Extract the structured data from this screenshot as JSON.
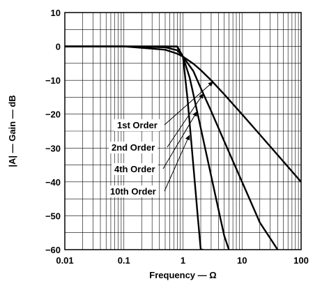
{
  "chart_data": {
    "type": "line",
    "title": "",
    "xlabel": "Frequency — Ω",
    "ylabel": "|A| — Gain — dB",
    "xscale": "log",
    "xlim": [
      0.01,
      100
    ],
    "ylim": [
      -60,
      10
    ],
    "grid": true,
    "x_ticks": [
      {
        "value": 0.01,
        "label": "0.01"
      },
      {
        "value": 0.1,
        "label": "0.1"
      },
      {
        "value": 1,
        "label": "1"
      },
      {
        "value": 10,
        "label": "10"
      },
      {
        "value": 100,
        "label": "100"
      }
    ],
    "y_ticks": [
      {
        "value": 10,
        "label": "10"
      },
      {
        "value": 0,
        "label": "0"
      },
      {
        "value": -10,
        "label": "−10"
      },
      {
        "value": -20,
        "label": "−20"
      },
      {
        "value": -30,
        "label": "−30"
      },
      {
        "value": -40,
        "label": "−40"
      },
      {
        "value": -50,
        "label": "−50"
      },
      {
        "value": -60,
        "label": "−60"
      }
    ],
    "series": [
      {
        "order": 1,
        "x": [
          0.01,
          0.1,
          0.5,
          0.8,
          1,
          1.5,
          2,
          3,
          5,
          10,
          20,
          50,
          100
        ],
        "y": [
          0,
          0,
          -0.97,
          -2.15,
          -3.01,
          -5.12,
          -6.99,
          -10.0,
          -14.15,
          -20.04,
          -26.03,
          -33.98,
          -40.0
        ]
      },
      {
        "order": 2,
        "x": [
          0.01,
          0.1,
          0.5,
          0.8,
          1,
          1.5,
          2,
          3,
          5,
          10,
          20,
          40
        ],
        "y": [
          0,
          0,
          -0.26,
          -1.14,
          -3.01,
          -7.3,
          -12.3,
          -19.1,
          -28.0,
          -40.0,
          -52.0,
          -60.0
        ]
      },
      {
        "order": 4,
        "x": [
          0.01,
          0.1,
          0.5,
          0.8,
          1,
          1.3,
          1.5,
          2,
          3,
          4,
          5,
          6
        ],
        "y": [
          0,
          0,
          0,
          -0.07,
          -3.01,
          -9.3,
          -14.1,
          -24.1,
          -38.2,
          -48.2,
          -55.9,
          -60.0
        ]
      },
      {
        "order": 10,
        "x": [
          0.01,
          0.1,
          0.5,
          0.8,
          1,
          1.2,
          1.5,
          1.8,
          2,
          2.2
        ],
        "y": [
          0,
          0,
          0,
          0,
          -3.01,
          -15.9,
          -35.2,
          -51.1,
          -60.0,
          -60.0
        ]
      }
    ],
    "annotations": [
      {
        "text": "1st Order",
        "points_to": [
          3.2,
          -10.5
        ]
      },
      {
        "text": "2nd Order",
        "points_to": [
          2.2,
          -14.0
        ]
      },
      {
        "text": "4th Order",
        "points_to": [
          1.72,
          -19.3
        ]
      },
      {
        "text": "10th Order",
        "points_to": [
          1.28,
          -26.3
        ]
      }
    ]
  }
}
